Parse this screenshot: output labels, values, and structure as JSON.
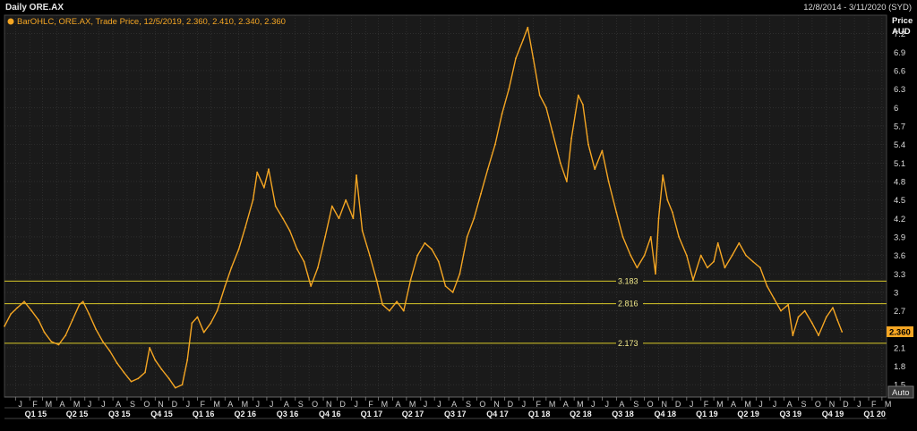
{
  "header": {
    "title": "Daily ORE.AX",
    "date_range": "12/8/2014 - 3/11/2020 (SYD)"
  },
  "legend": {
    "text": "BarOHLC, ORE.AX, Trade Price, 12/5/2019, 2.360, 2.410, 2.340, 2.360"
  },
  "auto_button": "Auto",
  "colors": {
    "background": "#1a1a1a",
    "price": "#f5a623",
    "hline": "#d9c928",
    "grid": "#3a3a3a"
  },
  "chart_data": {
    "type": "line",
    "yaxis_title": [
      "Price",
      "AUD"
    ],
    "ylim": [
      1.3,
      7.5
    ],
    "yticks": [
      1.5,
      1.8,
      2.1,
      2.4,
      2.7,
      3,
      3.3,
      3.6,
      3.9,
      4.2,
      4.5,
      4.8,
      5.1,
      5.4,
      5.7,
      6,
      6.3,
      6.6,
      6.9,
      7.2
    ],
    "yticklabels": [
      "1.5",
      "1.8",
      "2.1",
      "2.4",
      "2.7",
      "3",
      "3.3",
      "3.6",
      "3.9",
      "4.2",
      "4.5",
      "4.8",
      "5.1",
      "5.4",
      "5.7",
      "6",
      "6.3",
      "6.6",
      "6.9",
      "7.2"
    ],
    "xlim": [
      "2014-12-08",
      "2020-03-11"
    ],
    "month_ticks": [
      {
        "date": "2015-01-01",
        "label": "J"
      },
      {
        "date": "2015-02-01",
        "label": "F"
      },
      {
        "date": "2015-03-01",
        "label": "M"
      },
      {
        "date": "2015-04-01",
        "label": "A"
      },
      {
        "date": "2015-05-01",
        "label": "M"
      },
      {
        "date": "2015-06-01",
        "label": "J"
      },
      {
        "date": "2015-07-01",
        "label": "J"
      },
      {
        "date": "2015-08-01",
        "label": "A"
      },
      {
        "date": "2015-09-01",
        "label": "S"
      },
      {
        "date": "2015-10-01",
        "label": "O"
      },
      {
        "date": "2015-11-01",
        "label": "N"
      },
      {
        "date": "2015-12-01",
        "label": "D"
      },
      {
        "date": "2016-01-01",
        "label": "J"
      },
      {
        "date": "2016-02-01",
        "label": "F"
      },
      {
        "date": "2016-03-01",
        "label": "M"
      },
      {
        "date": "2016-04-01",
        "label": "A"
      },
      {
        "date": "2016-05-01",
        "label": "M"
      },
      {
        "date": "2016-06-01",
        "label": "J"
      },
      {
        "date": "2016-07-01",
        "label": "J"
      },
      {
        "date": "2016-08-01",
        "label": "A"
      },
      {
        "date": "2016-09-01",
        "label": "S"
      },
      {
        "date": "2016-10-01",
        "label": "O"
      },
      {
        "date": "2016-11-01",
        "label": "N"
      },
      {
        "date": "2016-12-01",
        "label": "D"
      },
      {
        "date": "2017-01-01",
        "label": "J"
      },
      {
        "date": "2017-02-01",
        "label": "F"
      },
      {
        "date": "2017-03-01",
        "label": "M"
      },
      {
        "date": "2017-04-01",
        "label": "A"
      },
      {
        "date": "2017-05-01",
        "label": "M"
      },
      {
        "date": "2017-06-01",
        "label": "J"
      },
      {
        "date": "2017-07-01",
        "label": "J"
      },
      {
        "date": "2017-08-01",
        "label": "A"
      },
      {
        "date": "2017-09-01",
        "label": "S"
      },
      {
        "date": "2017-10-01",
        "label": "O"
      },
      {
        "date": "2017-11-01",
        "label": "N"
      },
      {
        "date": "2017-12-01",
        "label": "D"
      },
      {
        "date": "2018-01-01",
        "label": "J"
      },
      {
        "date": "2018-02-01",
        "label": "F"
      },
      {
        "date": "2018-03-01",
        "label": "M"
      },
      {
        "date": "2018-04-01",
        "label": "A"
      },
      {
        "date": "2018-05-01",
        "label": "M"
      },
      {
        "date": "2018-06-01",
        "label": "J"
      },
      {
        "date": "2018-07-01",
        "label": "J"
      },
      {
        "date": "2018-08-01",
        "label": "A"
      },
      {
        "date": "2018-09-01",
        "label": "S"
      },
      {
        "date": "2018-10-01",
        "label": "O"
      },
      {
        "date": "2018-11-01",
        "label": "N"
      },
      {
        "date": "2018-12-01",
        "label": "D"
      },
      {
        "date": "2019-01-01",
        "label": "J"
      },
      {
        "date": "2019-02-01",
        "label": "F"
      },
      {
        "date": "2019-03-01",
        "label": "M"
      },
      {
        "date": "2019-04-01",
        "label": "A"
      },
      {
        "date": "2019-05-01",
        "label": "M"
      },
      {
        "date": "2019-06-01",
        "label": "J"
      },
      {
        "date": "2019-07-01",
        "label": "J"
      },
      {
        "date": "2019-08-01",
        "label": "A"
      },
      {
        "date": "2019-09-01",
        "label": "S"
      },
      {
        "date": "2019-10-01",
        "label": "O"
      },
      {
        "date": "2019-11-01",
        "label": "N"
      },
      {
        "date": "2019-12-01",
        "label": "D"
      },
      {
        "date": "2020-01-01",
        "label": "J"
      },
      {
        "date": "2020-02-01",
        "label": "F"
      },
      {
        "date": "2020-03-01",
        "label": "M"
      }
    ],
    "quarter_ticks": [
      {
        "date": "2015-02-14",
        "label": "Q1 15"
      },
      {
        "date": "2015-05-15",
        "label": "Q2 15"
      },
      {
        "date": "2015-08-15",
        "label": "Q3 15"
      },
      {
        "date": "2015-11-15",
        "label": "Q4 15"
      },
      {
        "date": "2016-02-14",
        "label": "Q1 16"
      },
      {
        "date": "2016-05-15",
        "label": "Q2 16"
      },
      {
        "date": "2016-08-15",
        "label": "Q3 16"
      },
      {
        "date": "2016-11-15",
        "label": "Q4 16"
      },
      {
        "date": "2017-02-14",
        "label": "Q1 17"
      },
      {
        "date": "2017-05-15",
        "label": "Q2 17"
      },
      {
        "date": "2017-08-15",
        "label": "Q3 17"
      },
      {
        "date": "2017-11-15",
        "label": "Q4 17"
      },
      {
        "date": "2018-02-14",
        "label": "Q1 18"
      },
      {
        "date": "2018-05-15",
        "label": "Q2 18"
      },
      {
        "date": "2018-08-15",
        "label": "Q3 18"
      },
      {
        "date": "2018-11-15",
        "label": "Q4 18"
      },
      {
        "date": "2019-02-14",
        "label": "Q1 19"
      },
      {
        "date": "2019-05-15",
        "label": "Q2 19"
      },
      {
        "date": "2019-08-15",
        "label": "Q3 19"
      },
      {
        "date": "2019-11-15",
        "label": "Q4 19"
      },
      {
        "date": "2020-02-14",
        "label": "Q1 20"
      }
    ],
    "horizontal_lines": [
      {
        "value": 3.183,
        "label": "3.183"
      },
      {
        "value": 2.816,
        "label": "2.816"
      },
      {
        "value": 2.173,
        "label": "2.173"
      }
    ],
    "last_price": {
      "value": 2.36,
      "label": "2.360"
    },
    "series": [
      {
        "points": [
          [
            "2014-12-08",
            2.45
          ],
          [
            "2014-12-22",
            2.65
          ],
          [
            "2015-01-05",
            2.75
          ],
          [
            "2015-01-20",
            2.85
          ],
          [
            "2015-02-05",
            2.7
          ],
          [
            "2015-02-20",
            2.55
          ],
          [
            "2015-03-05",
            2.35
          ],
          [
            "2015-03-20",
            2.2
          ],
          [
            "2015-04-05",
            2.15
          ],
          [
            "2015-04-20",
            2.3
          ],
          [
            "2015-05-05",
            2.55
          ],
          [
            "2015-05-20",
            2.8
          ],
          [
            "2015-05-28",
            2.85
          ],
          [
            "2015-06-10",
            2.65
          ],
          [
            "2015-06-25",
            2.4
          ],
          [
            "2015-07-10",
            2.2
          ],
          [
            "2015-07-25",
            2.05
          ],
          [
            "2015-08-10",
            1.85
          ],
          [
            "2015-08-25",
            1.7
          ],
          [
            "2015-09-10",
            1.55
          ],
          [
            "2015-09-25",
            1.6
          ],
          [
            "2015-10-10",
            1.7
          ],
          [
            "2015-10-20",
            2.1
          ],
          [
            "2015-11-01",
            1.9
          ],
          [
            "2015-11-15",
            1.75
          ],
          [
            "2015-12-01",
            1.6
          ],
          [
            "2015-12-15",
            1.45
          ],
          [
            "2015-12-30",
            1.5
          ],
          [
            "2016-01-10",
            1.9
          ],
          [
            "2016-01-20",
            2.5
          ],
          [
            "2016-02-01",
            2.6
          ],
          [
            "2016-02-15",
            2.35
          ],
          [
            "2016-03-01",
            2.5
          ],
          [
            "2016-03-15",
            2.7
          ],
          [
            "2016-04-01",
            3.1
          ],
          [
            "2016-04-15",
            3.4
          ],
          [
            "2016-05-01",
            3.7
          ],
          [
            "2016-05-15",
            4.05
          ],
          [
            "2016-06-01",
            4.5
          ],
          [
            "2016-06-10",
            4.95
          ],
          [
            "2016-06-25",
            4.7
          ],
          [
            "2016-07-05",
            5.0
          ],
          [
            "2016-07-20",
            4.4
          ],
          [
            "2016-08-05",
            4.2
          ],
          [
            "2016-08-20",
            4.0
          ],
          [
            "2016-09-05",
            3.7
          ],
          [
            "2016-09-20",
            3.5
          ],
          [
            "2016-10-05",
            3.1
          ],
          [
            "2016-10-20",
            3.4
          ],
          [
            "2016-11-05",
            3.9
          ],
          [
            "2016-11-20",
            4.4
          ],
          [
            "2016-12-05",
            4.2
          ],
          [
            "2016-12-20",
            4.5
          ],
          [
            "2017-01-05",
            4.2
          ],
          [
            "2017-01-12",
            4.9
          ],
          [
            "2017-01-25",
            4.0
          ],
          [
            "2017-02-10",
            3.6
          ],
          [
            "2017-02-25",
            3.2
          ],
          [
            "2017-03-10",
            2.8
          ],
          [
            "2017-03-25",
            2.7
          ],
          [
            "2017-04-10",
            2.85
          ],
          [
            "2017-04-25",
            2.7
          ],
          [
            "2017-05-10",
            3.2
          ],
          [
            "2017-05-25",
            3.6
          ],
          [
            "2017-06-10",
            3.8
          ],
          [
            "2017-06-25",
            3.7
          ],
          [
            "2017-07-10",
            3.5
          ],
          [
            "2017-07-25",
            3.1
          ],
          [
            "2017-08-10",
            3.0
          ],
          [
            "2017-08-25",
            3.3
          ],
          [
            "2017-09-10",
            3.9
          ],
          [
            "2017-09-25",
            4.2
          ],
          [
            "2017-10-10",
            4.6
          ],
          [
            "2017-10-25",
            5.0
          ],
          [
            "2017-11-10",
            5.4
          ],
          [
            "2017-11-25",
            5.9
          ],
          [
            "2017-12-10",
            6.3
          ],
          [
            "2017-12-25",
            6.8
          ],
          [
            "2018-01-10",
            7.1
          ],
          [
            "2018-01-20",
            7.3
          ],
          [
            "2018-02-01",
            6.8
          ],
          [
            "2018-02-15",
            6.2
          ],
          [
            "2018-03-01",
            6.0
          ],
          [
            "2018-03-15",
            5.6
          ],
          [
            "2018-04-01",
            5.1
          ],
          [
            "2018-04-15",
            4.8
          ],
          [
            "2018-04-25",
            5.5
          ],
          [
            "2018-05-10",
            6.2
          ],
          [
            "2018-05-20",
            6.05
          ],
          [
            "2018-06-01",
            5.4
          ],
          [
            "2018-06-15",
            5.0
          ],
          [
            "2018-07-01",
            5.3
          ],
          [
            "2018-07-15",
            4.8
          ],
          [
            "2018-08-01",
            4.3
          ],
          [
            "2018-08-15",
            3.9
          ],
          [
            "2018-09-01",
            3.6
          ],
          [
            "2018-09-15",
            3.4
          ],
          [
            "2018-10-01",
            3.6
          ],
          [
            "2018-10-15",
            3.9
          ],
          [
            "2018-10-25",
            3.3
          ],
          [
            "2018-11-01",
            4.2
          ],
          [
            "2018-11-10",
            4.9
          ],
          [
            "2018-11-20",
            4.5
          ],
          [
            "2018-12-01",
            4.3
          ],
          [
            "2018-12-15",
            3.9
          ],
          [
            "2019-01-01",
            3.6
          ],
          [
            "2019-01-15",
            3.2
          ],
          [
            "2019-02-01",
            3.6
          ],
          [
            "2019-02-15",
            3.4
          ],
          [
            "2019-03-01",
            3.5
          ],
          [
            "2019-03-10",
            3.8
          ],
          [
            "2019-03-25",
            3.4
          ],
          [
            "2019-04-10",
            3.6
          ],
          [
            "2019-04-25",
            3.8
          ],
          [
            "2019-05-10",
            3.6
          ],
          [
            "2019-05-25",
            3.5
          ],
          [
            "2019-06-10",
            3.4
          ],
          [
            "2019-06-25",
            3.1
          ],
          [
            "2019-07-10",
            2.9
          ],
          [
            "2019-07-25",
            2.7
          ],
          [
            "2019-08-10",
            2.8
          ],
          [
            "2019-08-20",
            2.3
          ],
          [
            "2019-09-01",
            2.6
          ],
          [
            "2019-09-15",
            2.7
          ],
          [
            "2019-10-01",
            2.5
          ],
          [
            "2019-10-15",
            2.3
          ],
          [
            "2019-11-01",
            2.6
          ],
          [
            "2019-11-15",
            2.75
          ],
          [
            "2019-11-25",
            2.55
          ],
          [
            "2019-12-05",
            2.36
          ]
        ]
      }
    ]
  }
}
